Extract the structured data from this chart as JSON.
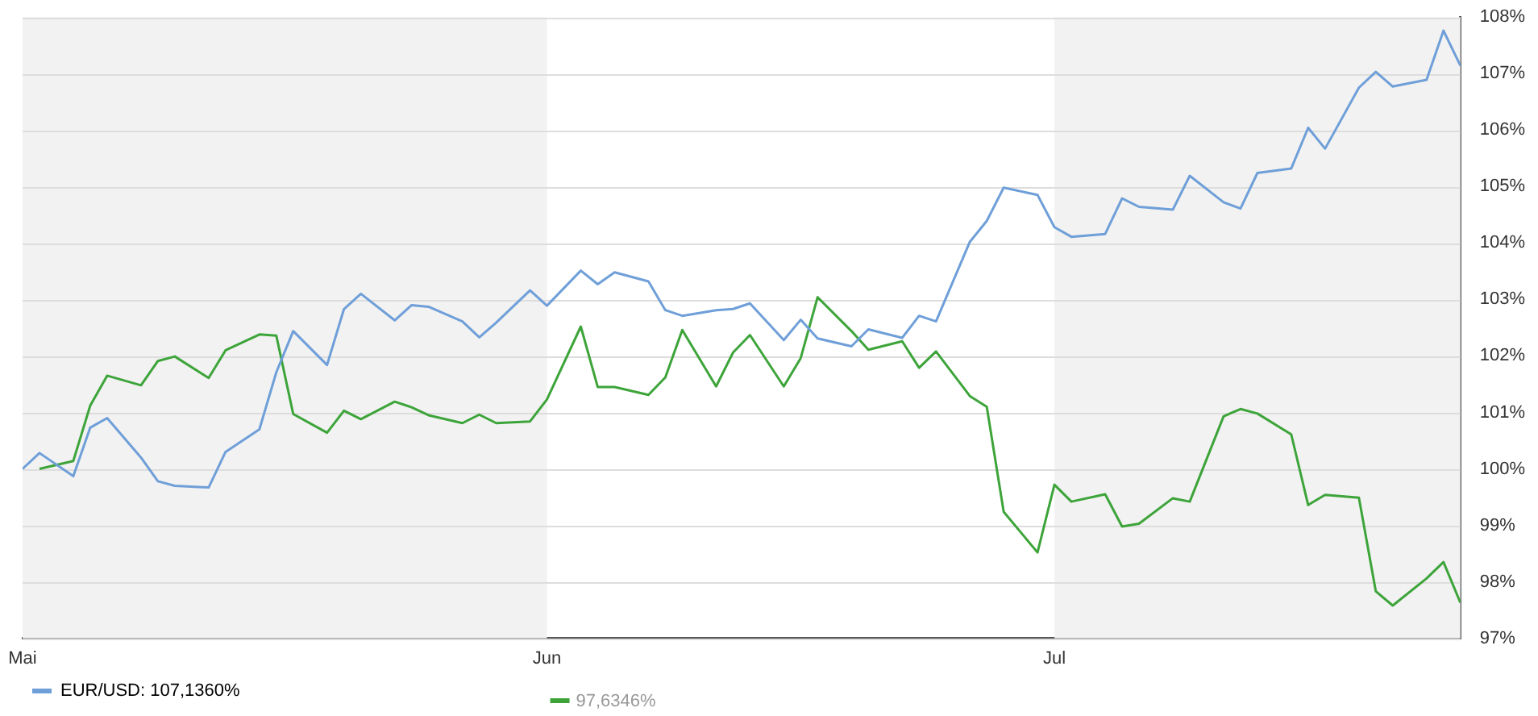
{
  "chart_data": {
    "type": "line",
    "x": [
      "--05-01",
      "--05-02",
      "--05-04",
      "--05-05",
      "--05-06",
      "--05-08",
      "--05-09",
      "--05-10",
      "--05-12",
      "--05-13",
      "--05-15",
      "--05-16",
      "--05-17",
      "--05-19",
      "--05-20",
      "--05-21",
      "--05-23",
      "--05-24",
      "--05-25",
      "--05-27",
      "--05-28",
      "--05-29",
      "--05-31",
      "--06-01",
      "--06-03",
      "--06-04",
      "--06-05",
      "--06-07",
      "--06-08",
      "--06-09",
      "--06-11",
      "--06-12",
      "--06-13",
      "--06-15",
      "--06-16",
      "--06-17",
      "--06-19",
      "--06-20",
      "--06-22",
      "--06-23",
      "--06-24",
      "--06-26",
      "--06-27",
      "--06-28",
      "--06-30",
      "--07-01",
      "--07-02",
      "--07-04",
      "--07-05",
      "--07-06",
      "--07-08",
      "--07-09",
      "--07-11",
      "--07-12",
      "--07-13",
      "--07-15",
      "--07-16",
      "--07-17",
      "--07-19",
      "--07-20",
      "--07-21",
      "--07-23",
      "--07-24",
      "--07-25"
    ],
    "series": [
      {
        "name": "EUR/USD: 107,1360%",
        "color": "#6f9fd8",
        "values": [
          100.0,
          100.28,
          99.87,
          100.73,
          100.9,
          100.2,
          99.78,
          99.7,
          99.67,
          100.3,
          100.7,
          101.71,
          102.44,
          101.84,
          102.83,
          103.1,
          102.63,
          102.9,
          102.87,
          102.61,
          102.33,
          102.59,
          103.16,
          102.89,
          103.51,
          103.27,
          103.48,
          103.32,
          102.81,
          102.71,
          102.81,
          102.83,
          102.93,
          102.28,
          102.64,
          102.31,
          102.17,
          102.47,
          102.32,
          102.71,
          102.61,
          104.02,
          104.39,
          104.98,
          104.85,
          104.28,
          104.11,
          104.16,
          104.79,
          104.64,
          104.59,
          105.19,
          104.72,
          104.61,
          105.24,
          105.32,
          106.04,
          105.67,
          106.75,
          107.03,
          106.77,
          106.89,
          107.76,
          107.14
        ]
      },
      {
        "color": "#3da43a",
        "values": [
          null,
          100.0,
          100.14,
          101.12,
          101.65,
          101.48,
          101.91,
          101.99,
          101.61,
          102.1,
          102.38,
          102.36,
          100.97,
          100.64,
          101.03,
          100.88,
          101.19,
          101.09,
          100.95,
          100.81,
          100.96,
          100.81,
          100.84,
          101.23,
          102.52,
          101.45,
          101.45,
          101.31,
          101.62,
          102.46,
          101.46,
          102.06,
          102.37,
          101.46,
          101.96,
          103.04,
          102.44,
          102.11,
          102.26,
          101.79,
          102.08,
          101.29,
          101.1,
          99.24,
          98.52,
          99.72,
          99.42,
          99.55,
          98.98,
          99.03,
          99.48,
          99.42,
          100.93,
          101.06,
          100.98,
          100.61,
          99.36,
          99.54,
          99.49,
          97.83,
          97.58,
          98.06,
          98.35,
          97.63
        ]
      }
    ],
    "xlim": [
      "--05-01",
      "--07-25"
    ],
    "xticks": [
      {
        "value": "--05-01",
        "label": "Mai"
      },
      {
        "value": "--06-01",
        "label": "Jun"
      },
      {
        "value": "--07-01",
        "label": "Jul"
      }
    ],
    "ylim": [
      97,
      108
    ],
    "yticks": [
      {
        "value": 97,
        "label": "97%"
      },
      {
        "value": 98,
        "label": "98%"
      },
      {
        "value": 99,
        "label": "99%"
      },
      {
        "value": 100,
        "label": "100%"
      },
      {
        "value": 101,
        "label": "101%"
      },
      {
        "value": 102,
        "label": "102%"
      },
      {
        "value": 103,
        "label": "103%"
      },
      {
        "value": 104,
        "label": "104%"
      },
      {
        "value": 105,
        "label": "105%"
      },
      {
        "value": 106,
        "label": "106%"
      },
      {
        "value": 107,
        "label": "107%"
      },
      {
        "value": 108,
        "label": "108%"
      }
    ],
    "bands": [
      {
        "axis": "x",
        "from": "--05-01",
        "to": "--06-01",
        "color": "#f2f2f2"
      },
      {
        "axis": "x",
        "from": "--07-01",
        "to": "--07-25",
        "color": "#f2f2f2"
      }
    ],
    "grid": "y",
    "marker": "none",
    "line_style": "solid",
    "legend": "bottom left",
    "annotations": [
      "97,6346%"
    ]
  }
}
